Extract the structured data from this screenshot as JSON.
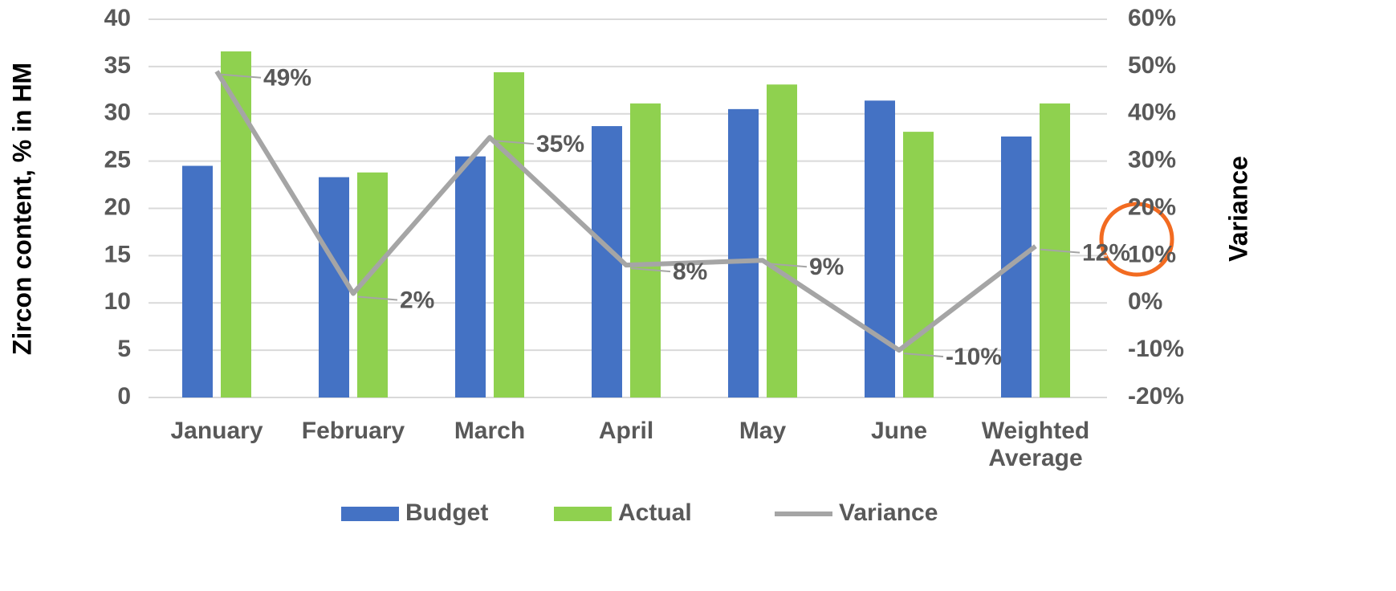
{
  "chart_data": {
    "type": "bar",
    "y_label": "Zircon content, % in HM",
    "y2_label": "Variance",
    "categories": [
      "January",
      "February",
      "March",
      "April",
      "May",
      "June",
      "Weighted Average"
    ],
    "series": [
      {
        "name": "Budget",
        "type": "bar",
        "color": "#4472c4",
        "values": [
          24.5,
          23.3,
          25.5,
          28.7,
          30.5,
          31.4,
          27.6
        ]
      },
      {
        "name": "Actual",
        "type": "bar",
        "color": "#8fd14f",
        "values": [
          36.6,
          23.8,
          34.4,
          31.1,
          33.1,
          28.1,
          31.1
        ]
      },
      {
        "name": "Variance",
        "type": "line",
        "axis": "y2",
        "color": "#a5a5a5",
        "values": [
          49,
          2,
          35,
          8,
          9,
          -10,
          12
        ],
        "value_labels": [
          "49%",
          "2%",
          "35%",
          "8%",
          "9%",
          "-10%",
          "12%"
        ]
      }
    ],
    "ylim": [
      0,
      40
    ],
    "yticks": [
      0,
      5,
      10,
      15,
      20,
      25,
      30,
      35,
      40
    ],
    "y2lim": [
      -20,
      60
    ],
    "y2ticks": [
      {
        "value": -20,
        "label": "-20%"
      },
      {
        "value": -10,
        "label": "-10%"
      },
      {
        "value": 0,
        "label": "0%"
      },
      {
        "value": 10,
        "label": "10%"
      },
      {
        "value": 20,
        "label": "20%"
      },
      {
        "value": 30,
        "label": "30%"
      },
      {
        "value": 40,
        "label": "40%"
      },
      {
        "value": 50,
        "label": "50%"
      },
      {
        "value": 60,
        "label": "60%"
      }
    ],
    "grid": true,
    "legend": "bottom"
  }
}
